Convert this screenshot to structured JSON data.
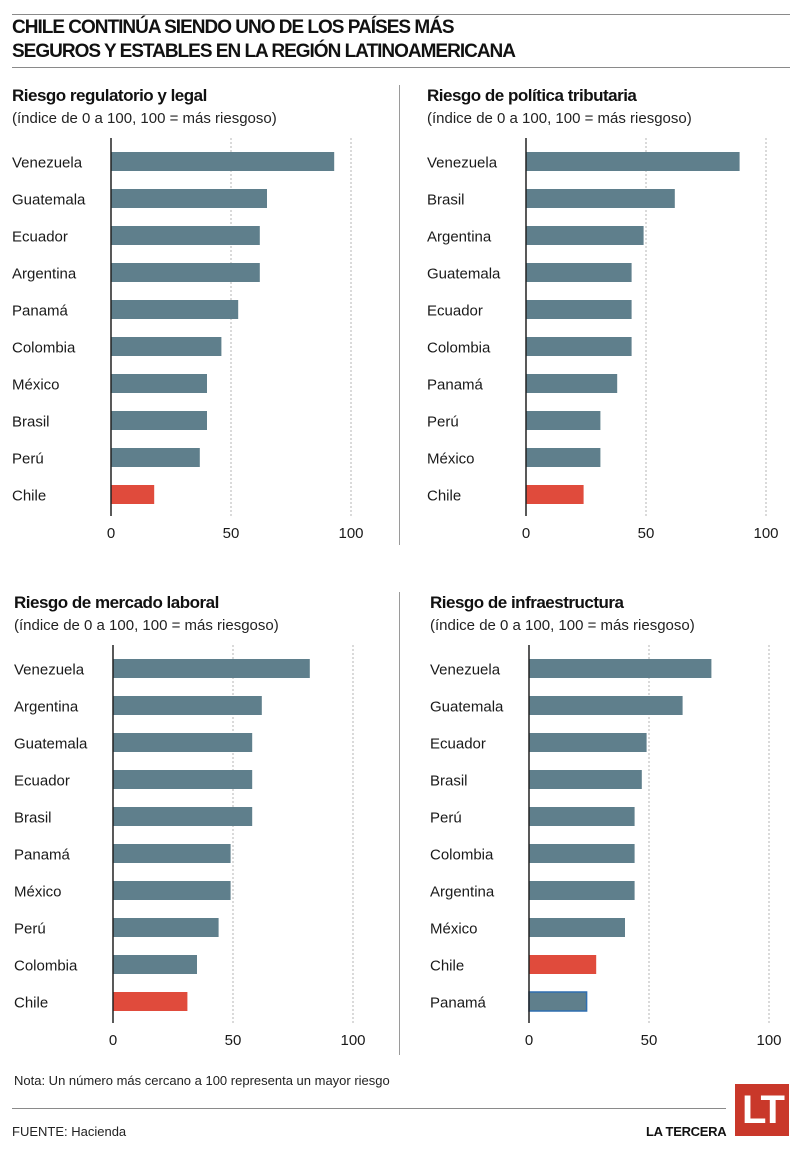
{
  "header": {
    "title_line1": "CHILE CONTINÚA SIENDO UNO DE LOS PAÍSES MÁS",
    "title_line2": "SEGUROS Y ESTABLES EN LA REGIÓN LATINOAMERICANA"
  },
  "colors": {
    "bar": "#5f7f8c",
    "highlight": "#e04b3c",
    "outlined_bar_border": "#2f6fb0",
    "grid": "#b5b5b5",
    "axis": "#222222",
    "logo": "#c9382a"
  },
  "chart_data": [
    {
      "type": "bar",
      "orientation": "horizontal",
      "title": "Riesgo regulatorio y legal",
      "subtitle": "(índice de 0 a 100, 100 = más riesgoso)",
      "categories": [
        "Venezuela",
        "Guatemala",
        "Ecuador",
        "Argentina",
        "Panamá",
        "Colombia",
        "México",
        "Brasil",
        "Perú",
        "Chile"
      ],
      "values": [
        93,
        65,
        62,
        62,
        53,
        46,
        40,
        40,
        37,
        18
      ],
      "highlight": [
        "Chile"
      ],
      "xlim": [
        0,
        100
      ],
      "xticks": [
        0,
        50,
        100
      ],
      "grid": "vertical dashed at 50 and 100"
    },
    {
      "type": "bar",
      "orientation": "horizontal",
      "title": "Riesgo de política tributaria",
      "subtitle": "(índice de 0 a 100, 100 = más riesgoso)",
      "categories": [
        "Venezuela",
        "Brasil",
        "Argentina",
        "Guatemala",
        "Ecuador",
        "Colombia",
        "Panamá",
        "Perú",
        "México",
        "Chile"
      ],
      "values": [
        89,
        62,
        49,
        44,
        44,
        44,
        38,
        31,
        31,
        24
      ],
      "highlight": [
        "Chile"
      ],
      "xlim": [
        0,
        100
      ],
      "xticks": [
        0,
        50,
        100
      ],
      "grid": "vertical dashed at 50 and 100"
    },
    {
      "type": "bar",
      "orientation": "horizontal",
      "title": "Riesgo de mercado laboral",
      "subtitle": "(índice de 0 a 100, 100 = más riesgoso)",
      "categories": [
        "Venezuela",
        "Argentina",
        "Guatemala",
        "Ecuador",
        "Brasil",
        "Panamá",
        "México",
        "Perú",
        "Colombia",
        "Chile"
      ],
      "values": [
        82,
        62,
        58,
        58,
        58,
        49,
        49,
        44,
        35,
        31
      ],
      "highlight": [
        "Chile"
      ],
      "xlim": [
        0,
        100
      ],
      "xticks": [
        0,
        50,
        100
      ],
      "grid": "vertical dashed at 50 and 100"
    },
    {
      "type": "bar",
      "orientation": "horizontal",
      "title": "Riesgo de infraestructura",
      "subtitle": "(índice de 0 a 100, 100 = más riesgoso)",
      "categories": [
        "Venezuela",
        "Guatemala",
        "Ecuador",
        "Brasil",
        "Perú",
        "Colombia",
        "Argentina",
        "México",
        "Chile",
        "Panamá"
      ],
      "values": [
        76,
        64,
        49,
        47,
        44,
        44,
        44,
        40,
        28,
        24
      ],
      "highlight": [
        "Chile"
      ],
      "outlined": [
        "Panamá"
      ],
      "xlim": [
        0,
        100
      ],
      "xticks": [
        0,
        50,
        100
      ],
      "grid": "vertical dashed at 50 and 100"
    }
  ],
  "footer": {
    "note": "Nota: Un número más cercano a 100 representa un mayor riesgo",
    "source": "FUENTE: Hacienda",
    "brand": "LA TERCERA",
    "logo_text": "LT"
  }
}
